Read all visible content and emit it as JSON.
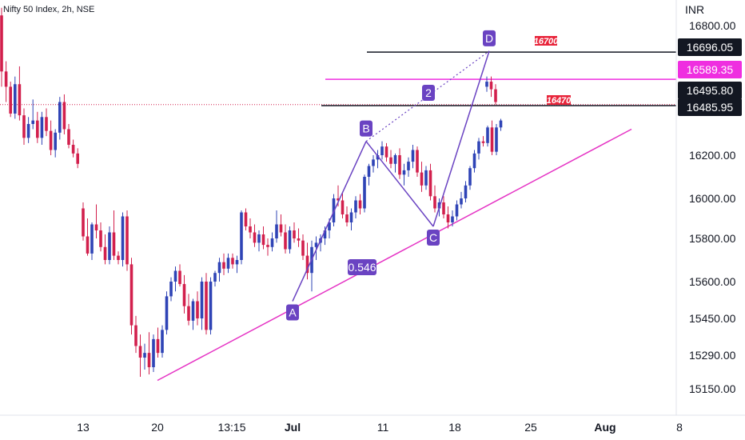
{
  "chart_header": {
    "title": "Nifty 50 Index, 2h, NSE"
  },
  "currency": "INR",
  "colors": {
    "up": "#2f44b6",
    "down": "#d2204d",
    "pattern": "#6a43c2",
    "trendline": "#e532c4",
    "magenta_level": "#ef2ee0",
    "black_level": "#131722",
    "red_badge": "#e8243a"
  },
  "chart_data": {
    "type": "candlestick",
    "title": "",
    "ylabel": "INR",
    "ylim": [
      15050,
      16920
    ],
    "y_ticks": [
      "16800.00",
      "16200.00",
      "16000.00",
      "15800.00",
      "15600.00",
      "15450.00",
      "15290.00",
      "15150.00"
    ],
    "x_ticks": [
      "13",
      "20",
      "13:15",
      "Jul",
      "11",
      "18",
      "25",
      "Aug",
      "8"
    ],
    "price_badges": [
      {
        "label": "16696.05",
        "style": "dark"
      },
      {
        "label": "16589.35",
        "style": "magenta"
      },
      {
        "label": "16495.80",
        "style": "dark"
      },
      {
        "label": "16485.95",
        "style": "dark"
      }
    ],
    "levels": [
      {
        "price": 16696.05,
        "color": "black"
      },
      {
        "price": 16589.35,
        "color": "magenta"
      },
      {
        "price": 16485.95,
        "color": "black"
      }
    ],
    "level_labels": [
      "16700",
      "16470"
    ],
    "pattern_points": [
      {
        "label": "A",
        "price": 15520
      },
      {
        "label": "B",
        "price": 16280
      },
      {
        "label": "C",
        "price": 15860
      },
      {
        "label": "D",
        "price": 16700
      }
    ],
    "pattern_ratios": [
      "0.546",
      "2"
    ],
    "trendline": {
      "from_price": 15185,
      "to_price": 16350
    },
    "candles": [
      [
        16840,
        16870,
        16560,
        16620
      ],
      [
        16620,
        16660,
        16500,
        16560
      ],
      [
        16560,
        16580,
        16420,
        16440
      ],
      [
        16440,
        16600,
        16410,
        16570
      ],
      [
        16570,
        16640,
        16400,
        16430
      ],
      [
        16430,
        16470,
        16260,
        16300
      ],
      [
        16300,
        16420,
        16270,
        16380
      ],
      [
        16380,
        16510,
        16350,
        16400
      ],
      [
        16400,
        16450,
        16270,
        16300
      ],
      [
        16300,
        16450,
        16260,
        16420
      ],
      [
        16420,
        16470,
        16310,
        16340
      ],
      [
        16340,
        16400,
        16200,
        16230
      ],
      [
        16230,
        16350,
        16190,
        16330
      ],
      [
        16330,
        16520,
        16290,
        16500
      ],
      [
        16500,
        16530,
        16320,
        16350
      ],
      [
        16350,
        16380,
        16240,
        16260
      ],
      [
        16260,
        16290,
        16190,
        16210
      ],
      [
        16210,
        16240,
        16140,
        16160
      ],
      [
        15950,
        15980,
        15790,
        15810
      ],
      [
        15810,
        15900,
        15720,
        15730
      ],
      [
        15730,
        15880,
        15700,
        15870
      ],
      [
        15870,
        15970,
        15800,
        15840
      ],
      [
        15840,
        15880,
        15740,
        15760
      ],
      [
        15760,
        15820,
        15680,
        15700
      ],
      [
        15700,
        15860,
        15680,
        15830
      ],
      [
        15830,
        15940,
        15700,
        15720
      ],
      [
        15720,
        15740,
        15680,
        15700
      ],
      [
        15700,
        15930,
        15670,
        15910
      ],
      [
        15910,
        15940,
        15650,
        15680
      ],
      [
        15680,
        15710,
        15380,
        15420
      ],
      [
        15420,
        15460,
        15300,
        15330
      ],
      [
        15330,
        15380,
        15200,
        15280
      ],
      [
        15280,
        15340,
        15230,
        15300
      ],
      [
        15300,
        15390,
        15210,
        15240
      ],
      [
        15240,
        15380,
        15220,
        15360
      ],
      [
        15360,
        15410,
        15280,
        15300
      ],
      [
        15300,
        15420,
        15280,
        15400
      ],
      [
        15400,
        15560,
        15380,
        15540
      ],
      [
        15540,
        15620,
        15520,
        15600
      ],
      [
        15600,
        15670,
        15560,
        15650
      ],
      [
        15650,
        15680,
        15580,
        15590
      ],
      [
        15590,
        15630,
        15470,
        15500
      ],
      [
        15500,
        15550,
        15420,
        15440
      ],
      [
        15440,
        15530,
        15400,
        15520
      ],
      [
        15520,
        15560,
        15420,
        15450
      ],
      [
        15450,
        15620,
        15400,
        15600
      ],
      [
        15600,
        15640,
        15380,
        15400
      ],
      [
        15400,
        15620,
        15380,
        15600
      ],
      [
        15600,
        15650,
        15580,
        15640
      ],
      [
        15640,
        15710,
        15600,
        15690
      ],
      [
        15690,
        15730,
        15630,
        15660
      ],
      [
        15660,
        15730,
        15640,
        15710
      ],
      [
        15710,
        15730,
        15660,
        15680
      ],
      [
        15680,
        15720,
        15640,
        15700
      ],
      [
        15700,
        15940,
        15680,
        15930
      ],
      [
        15930,
        15950,
        15840,
        15860
      ],
      [
        15860,
        15900,
        15800,
        15830
      ],
      [
        15830,
        15870,
        15760,
        15780
      ],
      [
        15780,
        15840,
        15740,
        15820
      ],
      [
        15820,
        15860,
        15750,
        15770
      ],
      [
        15770,
        15800,
        15720,
        15760
      ],
      [
        15760,
        15830,
        15740,
        15800
      ],
      [
        15800,
        15940,
        15780,
        15870
      ],
      [
        15870,
        15920,
        15810,
        15830
      ],
      [
        15830,
        15870,
        15730,
        15750
      ],
      [
        15750,
        15860,
        15730,
        15840
      ],
      [
        15840,
        15880,
        15780,
        15800
      ],
      [
        15800,
        15850,
        15760,
        15790
      ],
      [
        15790,
        15820,
        15700,
        15720
      ],
      [
        15720,
        15780,
        15610,
        15640
      ],
      [
        15640,
        15790,
        15560,
        15760
      ],
      [
        15760,
        15810,
        15700,
        15780
      ],
      [
        15780,
        15820,
        15740,
        15800
      ],
      [
        15800,
        15860,
        15770,
        15840
      ],
      [
        15840,
        15900,
        15800,
        15880
      ],
      [
        15880,
        16020,
        15860,
        16000
      ],
      [
        16000,
        16060,
        15960,
        15990
      ],
      [
        15990,
        16030,
        15900,
        15920
      ],
      [
        15920,
        15960,
        15860,
        15880
      ],
      [
        15880,
        15950,
        15840,
        15930
      ],
      [
        15930,
        16010,
        15900,
        15990
      ],
      [
        15990,
        16020,
        15920,
        15950
      ],
      [
        15950,
        16110,
        15930,
        16100
      ],
      [
        16100,
        16160,
        16060,
        16150
      ],
      [
        16150,
        16200,
        16120,
        16180
      ],
      [
        16180,
        16230,
        16140,
        16200
      ],
      [
        16200,
        16280,
        16180,
        16250
      ],
      [
        16250,
        16270,
        16170,
        16190
      ],
      [
        16190,
        16230,
        16140,
        16160
      ],
      [
        16160,
        16210,
        16120,
        16200
      ],
      [
        16200,
        16240,
        16090,
        16110
      ],
      [
        16110,
        16160,
        16060,
        16130
      ],
      [
        16130,
        16190,
        16100,
        16170
      ],
      [
        16170,
        16260,
        16140,
        16230
      ],
      [
        16230,
        16250,
        16100,
        16120
      ],
      [
        16120,
        16170,
        16030,
        16060
      ],
      [
        16060,
        16150,
        16040,
        16130
      ],
      [
        16130,
        16160,
        15990,
        16010
      ],
      [
        16010,
        16060,
        15930,
        15950
      ],
      [
        15950,
        16000,
        15910,
        15980
      ],
      [
        15980,
        16010,
        15900,
        15920
      ],
      [
        15920,
        15960,
        15850,
        15880
      ],
      [
        15880,
        15940,
        15860,
        15910
      ],
      [
        15910,
        15990,
        15890,
        15970
      ],
      [
        15970,
        16030,
        15950,
        16000
      ],
      [
        16000,
        16080,
        15980,
        16060
      ],
      [
        16060,
        16150,
        16040,
        16140
      ],
      [
        16140,
        16230,
        16120,
        16210
      ],
      [
        16210,
        16300,
        16180,
        16280
      ],
      [
        16280,
        16310,
        16250,
        16270
      ],
      [
        16270,
        16370,
        16250,
        16360
      ],
      [
        16360,
        16400,
        16200,
        16220
      ],
      [
        16220,
        16380,
        16200,
        16360
      ],
      [
        16360,
        16410,
        16340,
        16400
      ],
      [
        16560,
        16600,
        16540,
        16580
      ],
      [
        16580,
        16600,
        16520,
        16550
      ],
      [
        16550,
        16570,
        16490,
        16500
      ]
    ]
  }
}
